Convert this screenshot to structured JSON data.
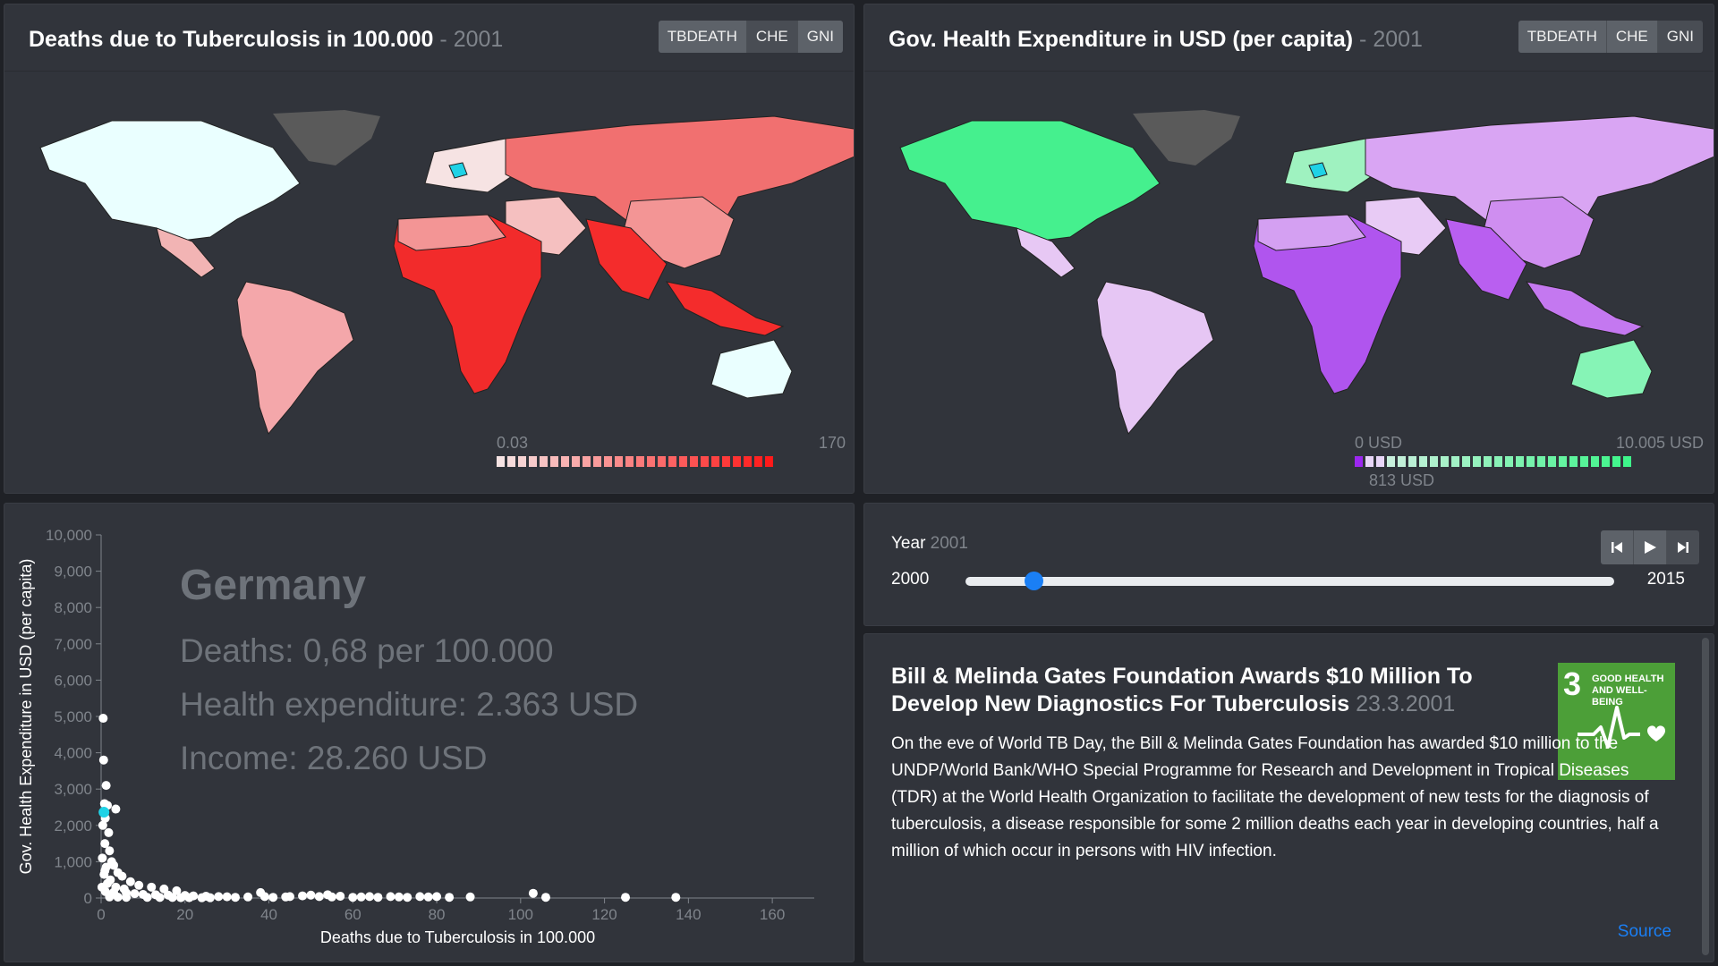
{
  "map_tbdeath": {
    "title": "Deaths due to Tuberculosis in 100.000",
    "year": "2001",
    "buttons": [
      "TBDEATH",
      "CHE",
      "GNI"
    ],
    "active_button": "TBDEATH",
    "legend_min": "0.03",
    "legend_max": "170",
    "color_low": "#f6e3e3",
    "color_high": "#ff1a1a"
  },
  "map_che": {
    "title": "Gov. Health Expenditure in USD (per capita)",
    "year": "2001",
    "buttons": [
      "TBDEATH",
      "CHE",
      "GNI"
    ],
    "active_button": "CHE",
    "legend_min": "0 USD",
    "legend_max": "10.005 USD",
    "legend_mid": "813 USD",
    "color_low": "#9c27f0",
    "color_high": "#3ef58a"
  },
  "scatter": {
    "country": "Germany",
    "deaths_line": "Deaths: 0,68 per 100.000",
    "health_line": "Health expenditure: 2.363 USD",
    "income_line": "Income: 28.260 USD"
  },
  "chart_data": {
    "type": "scatter",
    "xlabel": "Deaths due to Tuberculosis in 100.000",
    "ylabel": "Gov. Health Expenditure in USD (per capita)",
    "xlim": [
      0,
      170
    ],
    "ylim": [
      0,
      10000
    ],
    "x_ticks": [
      "0",
      "20",
      "40",
      "60",
      "80",
      "100",
      "120",
      "140",
      "160"
    ],
    "y_ticks": [
      "0",
      "1,000",
      "2,000",
      "3,000",
      "4,000",
      "5,000",
      "6,000",
      "7,000",
      "8,000",
      "9,000",
      "10,000"
    ],
    "highlight": {
      "x": 0.68,
      "y": 2363
    },
    "points": [
      [
        0.5,
        4950
      ],
      [
        0.6,
        3800
      ],
      [
        1.2,
        3100
      ],
      [
        0.8,
        2600
      ],
      [
        1.5,
        2550
      ],
      [
        3.5,
        2450
      ],
      [
        1.0,
        2200
      ],
      [
        0.4,
        2000
      ],
      [
        1.8,
        1800
      ],
      [
        0.9,
        1500
      ],
      [
        2.0,
        1300
      ],
      [
        0.3,
        1100
      ],
      [
        2.5,
        1000
      ],
      [
        3.0,
        900
      ],
      [
        1.2,
        850
      ],
      [
        4.0,
        700
      ],
      [
        0.7,
        650
      ],
      [
        5.0,
        600
      ],
      [
        2.2,
        500
      ],
      [
        7.0,
        450
      ],
      [
        9.0,
        350
      ],
      [
        12.0,
        300
      ],
      [
        15.0,
        250
      ],
      [
        18.0,
        200
      ],
      [
        1.0,
        180
      ],
      [
        3.0,
        160
      ],
      [
        6.0,
        140
      ],
      [
        8.0,
        120
      ],
      [
        10.0,
        100
      ],
      [
        13.0,
        90
      ],
      [
        16.0,
        80
      ],
      [
        20.0,
        70
      ],
      [
        22.0,
        60
      ],
      [
        25.0,
        50
      ],
      [
        28.0,
        40
      ],
      [
        30.0,
        35
      ],
      [
        2.0,
        30
      ],
      [
        4.0,
        25
      ],
      [
        6.0,
        20
      ],
      [
        11.0,
        20
      ],
      [
        14.0,
        15
      ],
      [
        17.0,
        15
      ],
      [
        19.0,
        10
      ],
      [
        21.0,
        10
      ],
      [
        24.0,
        8
      ],
      [
        26.0,
        8
      ],
      [
        32.0,
        20
      ],
      [
        35.0,
        30
      ],
      [
        38.0,
        150
      ],
      [
        39.0,
        40
      ],
      [
        41.0,
        20
      ],
      [
        44.0,
        30
      ],
      [
        45.0,
        40
      ],
      [
        48.0,
        60
      ],
      [
        50.0,
        80
      ],
      [
        52.0,
        40
      ],
      [
        54.0,
        90
      ],
      [
        55.0,
        30
      ],
      [
        57.0,
        50
      ],
      [
        60.0,
        20
      ],
      [
        62.0,
        30
      ],
      [
        64.0,
        40
      ],
      [
        66.0,
        20
      ],
      [
        69.0,
        40
      ],
      [
        71.0,
        30
      ],
      [
        73.0,
        20
      ],
      [
        76.0,
        40
      ],
      [
        78.0,
        30
      ],
      [
        80.0,
        40
      ],
      [
        83.0,
        20
      ],
      [
        88.0,
        30
      ],
      [
        103.0,
        130
      ],
      [
        106.0,
        20
      ],
      [
        125.0,
        20
      ],
      [
        137.0,
        20
      ],
      [
        1.5,
        400
      ],
      [
        3.5,
        300
      ],
      [
        5.5,
        250
      ],
      [
        0.2,
        300
      ],
      [
        0.9,
        750
      ]
    ]
  },
  "year_panel": {
    "label": "Year",
    "value": "2001",
    "min": "2000",
    "max": "2015",
    "current": 2001,
    "start": 2000,
    "end": 2015
  },
  "news": {
    "title": "Bill & Melinda Gates Foundation Awards $10 Million To Develop New Diagnostics For Tuberculosis",
    "date": "23.3.2001",
    "body": "On the eve of World TB Day, the Bill & Melinda Gates Foundation has awarded $10 million to the UNDP/World Bank/WHO Special Programme for Research and Development in Tropical Diseases (TDR) at the World Health Organization to facilitate the development of new tests for the diagnosis of tuberculosis, a disease responsible for some 2 million deaths each year in developing countries, half a million of which occur in persons with HIV infection.",
    "source": "Source",
    "sdg_number": "3",
    "sdg_text": "GOOD HEALTH AND WELL-BEING",
    "sdg_color": "#4c9f38"
  }
}
